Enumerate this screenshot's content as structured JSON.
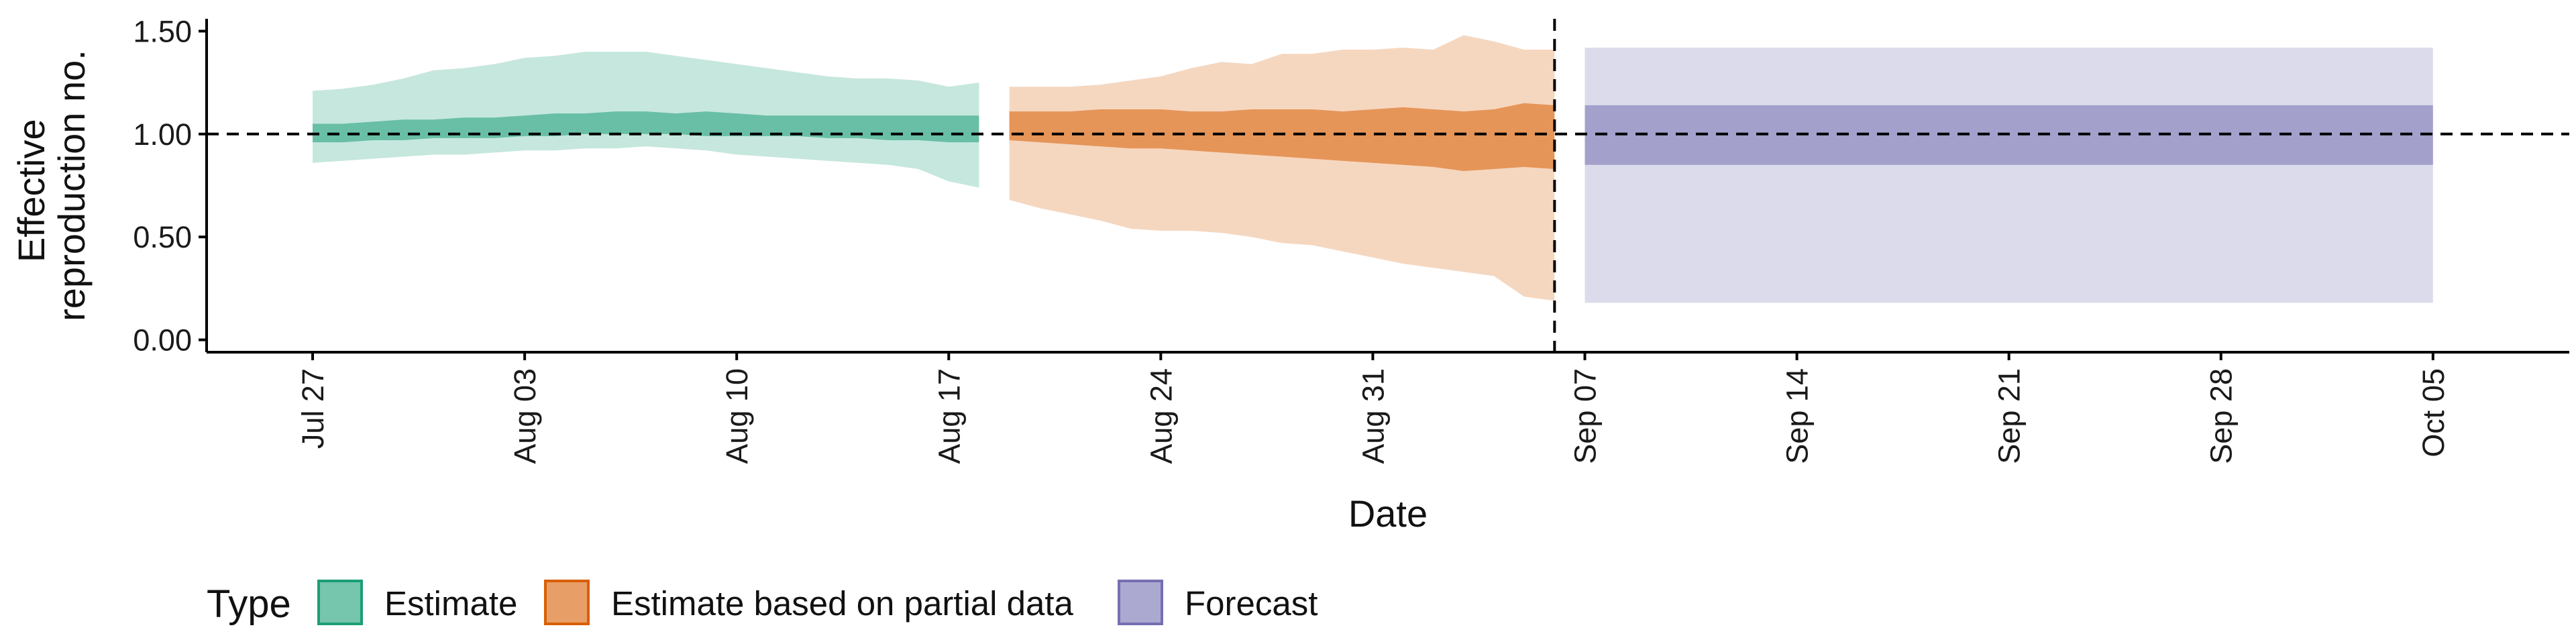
{
  "chart_data": {
    "type": "area",
    "xlabel": "Date",
    "ylabel": [
      "Effective",
      "reproduction no."
    ],
    "ylim": [
      0,
      1.5
    ],
    "y_ticks": [
      "0.00",
      "0.50",
      "1.00",
      "1.50"
    ],
    "y_tick_values": [
      0,
      0.5,
      1,
      1.5
    ],
    "x_ticks": [
      "Jul 27",
      "Aug 03",
      "Aug 10",
      "Aug 17",
      "Aug 24",
      "Aug 31",
      "Sep 07",
      "Sep 14",
      "Sep 21",
      "Sep 28",
      "Oct 05"
    ],
    "x_tick_days": [
      0,
      7,
      14,
      21,
      28,
      35,
      42,
      49,
      56,
      63,
      70
    ],
    "x_range_days": [
      -3.5,
      74.5
    ],
    "reference_line_y": 1.0,
    "vline_day": 41,
    "legend": {
      "title": "Type",
      "placement": "bottom-left"
    },
    "series": [
      {
        "name": "Estimate",
        "color": "#1b9e77",
        "days": [
          0,
          1,
          2,
          3,
          4,
          5,
          6,
          7,
          8,
          9,
          10,
          11,
          12,
          13,
          14,
          15,
          16,
          17,
          18,
          19,
          20,
          21,
          22
        ],
        "outer_low": [
          0.86,
          0.87,
          0.88,
          0.89,
          0.9,
          0.9,
          0.91,
          0.92,
          0.92,
          0.93,
          0.93,
          0.94,
          0.93,
          0.92,
          0.9,
          0.89,
          0.88,
          0.87,
          0.86,
          0.85,
          0.83,
          0.77,
          0.74
        ],
        "outer_high": [
          1.21,
          1.22,
          1.24,
          1.27,
          1.31,
          1.32,
          1.34,
          1.37,
          1.38,
          1.4,
          1.4,
          1.4,
          1.38,
          1.36,
          1.34,
          1.32,
          1.3,
          1.28,
          1.27,
          1.27,
          1.26,
          1.23,
          1.25
        ],
        "inner_low": [
          0.96,
          0.96,
          0.97,
          0.97,
          0.98,
          0.98,
          0.98,
          0.99,
          0.99,
          1.0,
          1.0,
          1.0,
          1.0,
          0.99,
          0.99,
          0.99,
          0.99,
          0.98,
          0.98,
          0.97,
          0.97,
          0.96,
          0.96
        ],
        "inner_high": [
          1.05,
          1.05,
          1.06,
          1.07,
          1.07,
          1.08,
          1.08,
          1.09,
          1.1,
          1.1,
          1.11,
          1.11,
          1.1,
          1.11,
          1.1,
          1.09,
          1.09,
          1.09,
          1.09,
          1.09,
          1.09,
          1.09,
          1.09
        ]
      },
      {
        "name": "Estimate based on partial data",
        "color": "#d95f02",
        "days": [
          23,
          24,
          25,
          26,
          27,
          28,
          29,
          30,
          31,
          32,
          33,
          34,
          35,
          36,
          37,
          38,
          39,
          40,
          41
        ],
        "outer_low": [
          0.68,
          0.64,
          0.61,
          0.58,
          0.54,
          0.53,
          0.53,
          0.52,
          0.5,
          0.47,
          0.46,
          0.43,
          0.4,
          0.37,
          0.35,
          0.33,
          0.31,
          0.21,
          0.19
        ],
        "outer_high": [
          1.23,
          1.23,
          1.23,
          1.24,
          1.26,
          1.28,
          1.32,
          1.35,
          1.34,
          1.39,
          1.39,
          1.41,
          1.41,
          1.42,
          1.41,
          1.48,
          1.45,
          1.41,
          1.41
        ],
        "inner_low": [
          0.97,
          0.96,
          0.95,
          0.94,
          0.93,
          0.93,
          0.92,
          0.91,
          0.9,
          0.89,
          0.88,
          0.87,
          0.86,
          0.85,
          0.84,
          0.82,
          0.83,
          0.84,
          0.83
        ],
        "inner_high": [
          1.11,
          1.11,
          1.11,
          1.12,
          1.12,
          1.12,
          1.11,
          1.11,
          1.12,
          1.12,
          1.12,
          1.11,
          1.12,
          1.13,
          1.12,
          1.11,
          1.12,
          1.15,
          1.14
        ]
      },
      {
        "name": "Forecast",
        "color": "#7570b3",
        "days": [
          42,
          70
        ],
        "outer_low": [
          0.18,
          0.18
        ],
        "outer_high": [
          1.42,
          1.42
        ],
        "inner_low": [
          0.85,
          0.85
        ],
        "inner_high": [
          1.14,
          1.14
        ]
      }
    ]
  }
}
